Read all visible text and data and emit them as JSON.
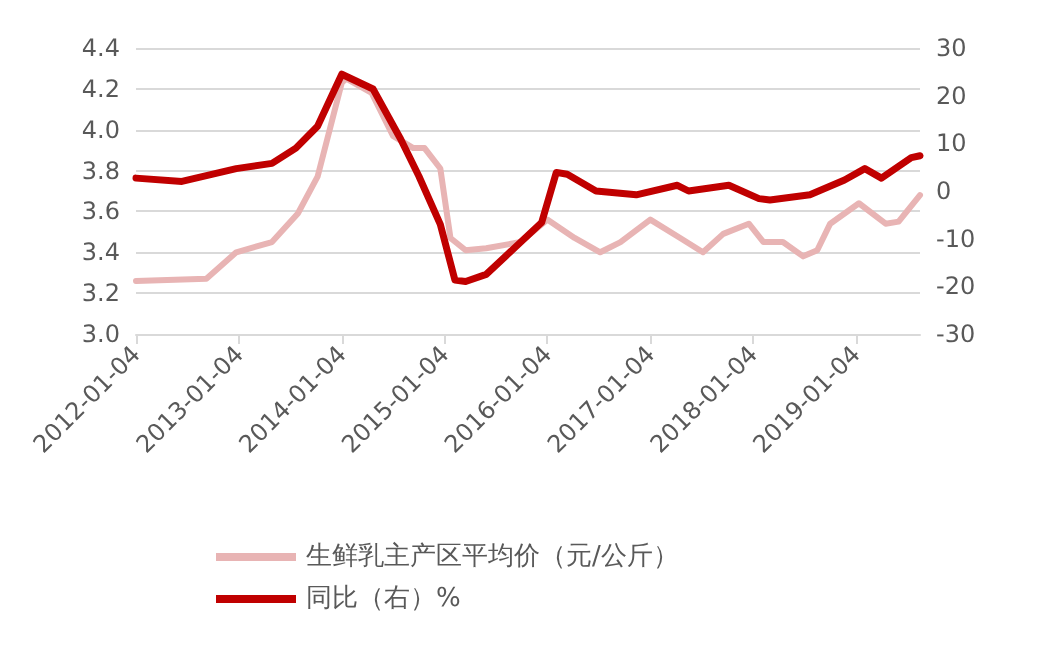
{
  "chart_data": {
    "type": "line",
    "xlim": [
      "2012-01-04",
      "2019-08-20"
    ],
    "xticks": [
      "2012-01-04",
      "2013-01-04",
      "2014-01-04",
      "2015-01-04",
      "2016-01-04",
      "2017-01-04",
      "2018-01-04",
      "2019-01-04"
    ],
    "ylim": [
      3.0,
      4.4
    ],
    "yticks": [
      {
        "value": 3,
        "label": "3.0"
      },
      3.2,
      3.4,
      3.6,
      3.8,
      {
        "value": 4,
        "label": "4.0"
      },
      4.2,
      4.4
    ],
    "y2lim": [
      -30,
      30
    ],
    "y2ticks": [
      -30,
      -20,
      -10,
      0,
      10,
      20,
      30
    ],
    "grid": "y",
    "legend": "bottom",
    "line_style": "solid",
    "marker": "none",
    "series": [
      {
        "name": "生鲜乳主产区平均价（元/公斤）",
        "color": "#e8b4b4",
        "x": [
          "2012-01-04",
          "2012-09-10",
          "2012-12-25",
          "2013-05-01",
          "2013-08-01",
          "2013-10-10",
          "2014-01-04",
          "2014-01-20",
          "2014-04-20",
          "2014-07-05",
          "2014-09-15",
          "2014-10-25",
          "2014-12-20",
          "2015-01-25",
          "2015-03-20",
          "2015-06-01",
          "2015-10-01",
          "2016-01-04",
          "2016-04-10",
          "2016-07-10",
          "2016-09-20",
          "2017-01-04",
          "2017-04-20",
          "2017-07-10",
          "2017-09-20",
          "2017-12-20",
          "2018-02-10",
          "2018-04-20",
          "2018-07-01",
          "2018-08-20",
          "2018-10-05",
          "2019-01-15",
          "2019-04-20",
          "2019-06-05",
          "2019-08-20"
        ],
        "values": [
          3.26,
          3.27,
          3.4,
          3.45,
          3.59,
          3.77,
          4.23,
          4.25,
          4.18,
          3.97,
          3.91,
          3.91,
          3.81,
          3.47,
          3.41,
          3.42,
          3.45,
          3.56,
          3.47,
          3.4,
          3.45,
          3.56,
          3.47,
          3.4,
          3.49,
          3.54,
          3.45,
          3.45,
          3.38,
          3.41,
          3.54,
          3.64,
          3.54,
          3.55,
          3.68
        ]
      },
      {
        "name": "同比（右）%",
        "color": "#c00000",
        "axis": "y2",
        "x": [
          "2012-01-04",
          "2012-06-15",
          "2012-12-25",
          "2013-05-01",
          "2013-07-25",
          "2013-10-10",
          "2014-01-04",
          "2014-04-25",
          "2014-08-01",
          "2014-10-05",
          "2014-12-20",
          "2015-02-10",
          "2015-03-20",
          "2015-06-01",
          "2015-12-15",
          "2016-02-05",
          "2016-03-15",
          "2016-06-25",
          "2016-11-15",
          "2017-04-10",
          "2017-05-20",
          "2017-10-10",
          "2018-01-25",
          "2018-03-05",
          "2018-07-25",
          "2018-11-25",
          "2019-02-05",
          "2019-04-05",
          "2019-07-20",
          "2019-08-20"
        ],
        "values": [
          2.7,
          2,
          4.7,
          5.8,
          9,
          13.6,
          24.5,
          21.4,
          10.9,
          3.1,
          -7,
          -18.7,
          -19,
          -17.5,
          -6.6,
          3.9,
          3.5,
          0,
          -0.8,
          1.2,
          0,
          1.2,
          -1.6,
          -1.9,
          -0.8,
          2.3,
          4.7,
          2.7,
          7,
          7.4
        ]
      }
    ]
  }
}
